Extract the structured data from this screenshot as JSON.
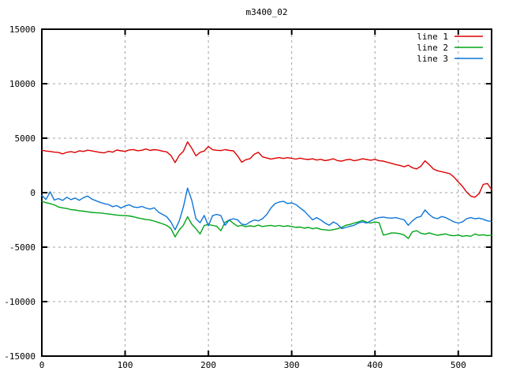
{
  "window": {
    "title": "m3400_02"
  },
  "chart_data": {
    "type": "line",
    "title": "m3400_02",
    "xlabel": "",
    "ylabel": "",
    "xlim": [
      0,
      540
    ],
    "ylim": [
      -15000,
      15000
    ],
    "xticks": [
      0,
      100,
      200,
      300,
      400,
      500
    ],
    "yticks": [
      15000,
      10000,
      5000,
      0,
      -5000,
      -10000,
      -15000
    ],
    "grid": true,
    "legend_position": "top-right-inside",
    "colors": {
      "background": "#ffffff",
      "border": "#000000",
      "grid": "#a0a0a0",
      "text": "#000000"
    },
    "x": [
      0,
      5,
      10,
      15,
      20,
      25,
      30,
      35,
      40,
      45,
      50,
      55,
      60,
      65,
      70,
      75,
      80,
      85,
      90,
      95,
      100,
      105,
      110,
      115,
      120,
      125,
      130,
      135,
      140,
      145,
      150,
      155,
      160,
      165,
      170,
      175,
      180,
      185,
      190,
      195,
      200,
      205,
      210,
      215,
      220,
      225,
      230,
      235,
      240,
      245,
      250,
      255,
      260,
      265,
      270,
      275,
      280,
      285,
      290,
      295,
      300,
      305,
      310,
      315,
      320,
      325,
      330,
      335,
      340,
      345,
      350,
      355,
      360,
      365,
      370,
      375,
      380,
      385,
      390,
      395,
      400,
      405,
      410,
      415,
      420,
      425,
      430,
      435,
      440,
      445,
      450,
      455,
      460,
      465,
      470,
      475,
      480,
      485,
      490,
      495,
      500,
      505,
      510,
      515,
      520,
      525,
      530,
      535,
      540
    ],
    "series": [
      {
        "name": "line 1",
        "color": "#dd0000",
        "values": [
          3900,
          3820,
          3780,
          3720,
          3690,
          3560,
          3700,
          3760,
          3680,
          3840,
          3780,
          3900,
          3830,
          3760,
          3690,
          3650,
          3800,
          3720,
          3910,
          3840,
          3790,
          3920,
          3960,
          3850,
          3890,
          4010,
          3880,
          3950,
          3900,
          3810,
          3740,
          3420,
          2760,
          3420,
          3800,
          4660,
          4080,
          3380,
          3700,
          3820,
          4240,
          3940,
          3890,
          3860,
          3950,
          3880,
          3840,
          3380,
          2800,
          3020,
          3120,
          3520,
          3700,
          3280,
          3180,
          3090,
          3160,
          3220,
          3140,
          3210,
          3150,
          3080,
          3170,
          3090,
          3040,
          3110,
          2990,
          3060,
          2940,
          3010,
          3110,
          2940,
          2890,
          3010,
          3060,
          2930,
          3000,
          3110,
          3040,
          2980,
          3060,
          2930,
          2890,
          2780,
          2690,
          2580,
          2490,
          2380,
          2520,
          2280,
          2180,
          2420,
          2920,
          2580,
          2180,
          2010,
          1920,
          1830,
          1740,
          1420,
          980,
          580,
          60,
          -320,
          -420,
          -80,
          760,
          840,
          280
        ]
      },
      {
        "name": "line 2",
        "color": "#00a516",
        "values": [
          -800,
          -920,
          -1010,
          -1120,
          -1310,
          -1400,
          -1460,
          -1560,
          -1590,
          -1660,
          -1700,
          -1760,
          -1810,
          -1840,
          -1860,
          -1910,
          -1950,
          -2010,
          -2060,
          -2090,
          -2110,
          -2140,
          -2210,
          -2310,
          -2390,
          -2460,
          -2510,
          -2610,
          -2740,
          -2860,
          -3010,
          -3290,
          -4060,
          -3410,
          -2990,
          -2210,
          -2890,
          -3310,
          -3790,
          -3010,
          -2920,
          -3010,
          -3090,
          -3490,
          -2720,
          -2520,
          -2810,
          -3090,
          -3010,
          -3110,
          -3040,
          -3100,
          -2980,
          -3110,
          -3050,
          -3000,
          -3090,
          -3010,
          -3100,
          -3040,
          -3110,
          -3190,
          -3150,
          -3260,
          -3190,
          -3310,
          -3240,
          -3360,
          -3410,
          -3460,
          -3390,
          -3310,
          -3190,
          -2990,
          -2910,
          -2790,
          -2690,
          -2540,
          -2710,
          -2790,
          -2690,
          -2760,
          -3890,
          -3810,
          -3690,
          -3710,
          -3760,
          -3890,
          -4210,
          -3590,
          -3490,
          -3720,
          -3810,
          -3690,
          -3810,
          -3910,
          -3840,
          -3790,
          -3910,
          -3960,
          -3890,
          -4010,
          -3940,
          -4010,
          -3790,
          -3910,
          -3860,
          -3940,
          -3900
        ]
      },
      {
        "name": "line 3",
        "color": "#0d75d8",
        "values": [
          -250,
          -620,
          80,
          -680,
          -540,
          -710,
          -420,
          -640,
          -490,
          -700,
          -460,
          -310,
          -590,
          -740,
          -890,
          -1010,
          -1090,
          -1290,
          -1190,
          -1410,
          -1210,
          -1110,
          -1310,
          -1360,
          -1260,
          -1410,
          -1510,
          -1390,
          -1790,
          -1990,
          -2210,
          -2690,
          -3410,
          -2590,
          -1310,
          420,
          -690,
          -2390,
          -2760,
          -2090,
          -3040,
          -2110,
          -1990,
          -2110,
          -2990,
          -2510,
          -2390,
          -2490,
          -2890,
          -2940,
          -2690,
          -2510,
          -2590,
          -2390,
          -2010,
          -1410,
          -1010,
          -860,
          -790,
          -990,
          -940,
          -1090,
          -1390,
          -1690,
          -2090,
          -2490,
          -2290,
          -2510,
          -2790,
          -2990,
          -2690,
          -2890,
          -3290,
          -3190,
          -3090,
          -2990,
          -2790,
          -2690,
          -2790,
          -2590,
          -2390,
          -2290,
          -2240,
          -2310,
          -2340,
          -2290,
          -2390,
          -2490,
          -2990,
          -2590,
          -2290,
          -2190,
          -1590,
          -1990,
          -2290,
          -2390,
          -2190,
          -2290,
          -2490,
          -2690,
          -2790,
          -2690,
          -2390,
          -2290,
          -2390,
          -2340,
          -2440,
          -2590,
          -2640
        ]
      }
    ]
  }
}
